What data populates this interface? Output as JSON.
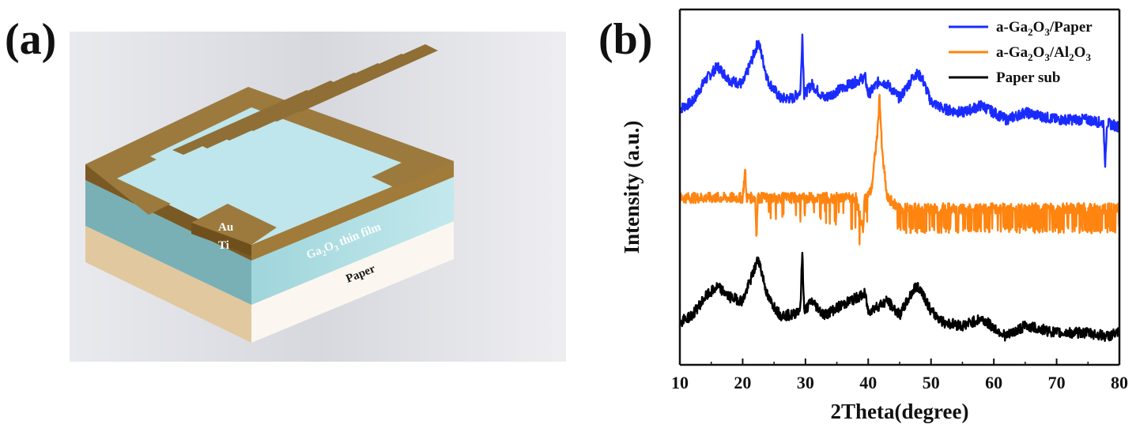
{
  "figure": {
    "panel_a_label": "(a)",
    "panel_b_label": "(b)"
  },
  "schematic": {
    "layers": {
      "au": "Au",
      "ti": "Ti",
      "film": "Ga2O3 thin film",
      "film_formula_base": "Ga",
      "film_formula_sub1": "2",
      "film_formula_mid": "O",
      "film_formula_sub2": "3",
      "film_formula_rest": " thin film",
      "paper": "Paper"
    },
    "colors": {
      "gold": "#a37f3c",
      "film": "#a9dde3",
      "film_side": "#7cb3b9",
      "paper": "#f4ece0",
      "paper_side": "#e0c8a6",
      "background": "#dcdde2"
    }
  },
  "chart_data": {
    "type": "line",
    "title": "",
    "xlabel": "2Theta(degree)",
    "ylabel": "Intensity (a.u.)",
    "xlim": [
      10,
      80
    ],
    "xticks": [
      10,
      20,
      30,
      40,
      50,
      60,
      70,
      80
    ],
    "grid": false,
    "legend_placement": "top-right",
    "legend": [
      {
        "label": "a-Ga2O3/Paper",
        "parts": [
          "a-Ga",
          "2",
          "O",
          "3",
          "/Paper"
        ],
        "color": "#1a2bff"
      },
      {
        "label": "a-Ga2O3/Al2O3",
        "parts": [
          "a-Ga",
          "2",
          "O",
          "3",
          "/Al",
          "2",
          "O",
          "3"
        ],
        "color": "#ff8410"
      },
      {
        "label": "Paper sub",
        "parts": [
          "Paper sub"
        ],
        "color": "#000000"
      }
    ],
    "series": [
      {
        "name": "a-Ga2O3/Paper",
        "color": "#1a2bff",
        "baseline": 0.72,
        "points": [
          [
            10,
            0.72
          ],
          [
            12,
            0.74
          ],
          [
            14,
            0.8
          ],
          [
            16,
            0.84
          ],
          [
            18,
            0.8
          ],
          [
            20,
            0.79
          ],
          [
            21.5,
            0.86
          ],
          [
            22.5,
            0.91
          ],
          [
            24,
            0.8
          ],
          [
            26,
            0.75
          ],
          [
            28,
            0.75
          ],
          [
            29.2,
            0.77
          ],
          [
            29.5,
            0.93
          ],
          [
            29.8,
            0.76
          ],
          [
            31,
            0.79
          ],
          [
            33,
            0.75
          ],
          [
            36,
            0.78
          ],
          [
            39.5,
            0.81
          ],
          [
            40,
            0.76
          ],
          [
            41.8,
            0.8
          ],
          [
            43,
            0.79
          ],
          [
            45,
            0.75
          ],
          [
            47.5,
            0.82
          ],
          [
            48.5,
            0.81
          ],
          [
            50,
            0.74
          ],
          [
            52,
            0.72
          ],
          [
            55,
            0.71
          ],
          [
            58,
            0.73
          ],
          [
            62,
            0.69
          ],
          [
            65,
            0.71
          ],
          [
            70,
            0.69
          ],
          [
            75,
            0.69
          ],
          [
            77.5,
            0.68
          ],
          [
            77.7,
            0.55
          ],
          [
            78,
            0.68
          ],
          [
            80,
            0.67
          ]
        ]
      },
      {
        "name": "a-Ga2O3/Al2O3",
        "color": "#ff8410",
        "baseline": 0.47,
        "points": [
          [
            10,
            0.47
          ],
          [
            15,
            0.47
          ],
          [
            20,
            0.47
          ],
          [
            20.4,
            0.55
          ],
          [
            20.6,
            0.47
          ],
          [
            22,
            0.47
          ],
          [
            22.2,
            0.36
          ],
          [
            22.4,
            0.47
          ],
          [
            30,
            0.47
          ],
          [
            38,
            0.47
          ],
          [
            39.2,
            0.38
          ],
          [
            39.4,
            0.47
          ],
          [
            40.5,
            0.49
          ],
          [
            41.5,
            0.66
          ],
          [
            41.8,
            0.76
          ],
          [
            42.2,
            0.6
          ],
          [
            43,
            0.47
          ],
          [
            45,
            0.44
          ],
          [
            50,
            0.44
          ],
          [
            60,
            0.44
          ],
          [
            70,
            0.44
          ],
          [
            80,
            0.44
          ]
        ]
      },
      {
        "name": "Paper sub",
        "color": "#000000",
        "baseline": 0.12,
        "points": [
          [
            10,
            0.12
          ],
          [
            12,
            0.14
          ],
          [
            14,
            0.19
          ],
          [
            16,
            0.22
          ],
          [
            18,
            0.19
          ],
          [
            20,
            0.18
          ],
          [
            21.5,
            0.25
          ],
          [
            22.5,
            0.3
          ],
          [
            24,
            0.19
          ],
          [
            26,
            0.14
          ],
          [
            28,
            0.14
          ],
          [
            29.2,
            0.16
          ],
          [
            29.5,
            0.32
          ],
          [
            29.8,
            0.15
          ],
          [
            31,
            0.18
          ],
          [
            33,
            0.14
          ],
          [
            36,
            0.17
          ],
          [
            39.5,
            0.2
          ],
          [
            40,
            0.15
          ],
          [
            43,
            0.18
          ],
          [
            45,
            0.14
          ],
          [
            47.5,
            0.22
          ],
          [
            48.5,
            0.21
          ],
          [
            50,
            0.15
          ],
          [
            52,
            0.12
          ],
          [
            55,
            0.11
          ],
          [
            58,
            0.13
          ],
          [
            62,
            0.08
          ],
          [
            65,
            0.11
          ],
          [
            70,
            0.09
          ],
          [
            75,
            0.09
          ],
          [
            78,
            0.08
          ],
          [
            80,
            0.09
          ]
        ]
      }
    ]
  }
}
